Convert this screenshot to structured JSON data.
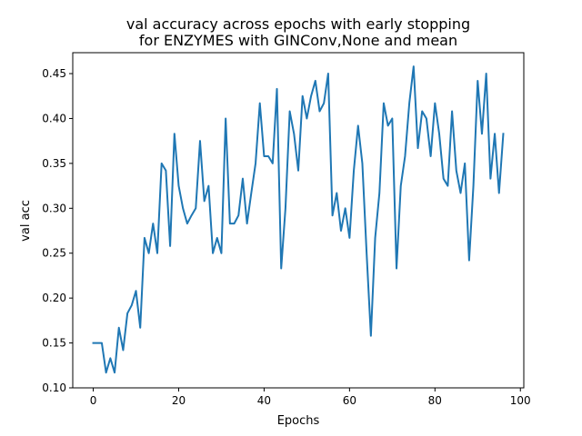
{
  "chart_data": {
    "type": "line",
    "title_lines": [
      "val accuracy across epochs with early stopping",
      "for ENZYMES with GINConv,None  and mean"
    ],
    "xlabel": "Epochs",
    "ylabel": "val acc",
    "xlim": [
      -4.8,
      100.8
    ],
    "ylim": [
      0.1,
      0.4733
    ],
    "xticks": [
      0,
      20,
      40,
      60,
      80,
      100
    ],
    "xtick_labels": [
      "0",
      "20",
      "40",
      "60",
      "80",
      "100"
    ],
    "yticks": [
      0.1,
      0.15,
      0.2,
      0.25,
      0.3,
      0.35,
      0.4,
      0.45
    ],
    "ytick_labels": [
      "0.10",
      "0.15",
      "0.20",
      "0.25",
      "0.30",
      "0.35",
      "0.40",
      "0.45"
    ],
    "grid": false,
    "line_color": "#1f77b4",
    "series": [
      {
        "x": [
          0,
          1,
          2,
          3,
          4,
          5,
          6,
          7,
          8,
          9,
          10,
          11,
          12,
          13,
          14,
          15,
          16,
          17,
          18,
          19,
          20,
          21,
          22,
          23,
          24,
          25,
          26,
          27,
          28,
          29,
          30,
          31,
          32,
          33,
          34,
          35,
          36,
          37,
          38,
          39,
          40,
          41,
          42,
          43,
          44,
          45,
          46,
          47,
          48,
          49,
          50,
          51,
          52,
          53,
          54,
          55,
          56,
          57,
          58,
          59,
          60,
          61,
          62,
          63,
          64,
          65,
          66,
          67,
          68,
          69,
          70,
          71,
          72,
          73,
          74,
          75,
          76,
          77,
          78,
          79,
          80,
          81,
          82,
          83,
          84,
          85,
          86,
          87,
          88,
          89,
          90,
          91,
          92,
          93,
          94,
          95,
          96
        ],
        "values": [
          0.15,
          0.15,
          0.15,
          0.117,
          0.133,
          0.117,
          0.167,
          0.142,
          0.183,
          0.192,
          0.208,
          0.167,
          0.267,
          0.25,
          0.283,
          0.25,
          0.35,
          0.342,
          0.258,
          0.383,
          0.325,
          0.3,
          0.283,
          0.292,
          0.3,
          0.375,
          0.308,
          0.325,
          0.25,
          0.267,
          0.25,
          0.4,
          0.283,
          0.283,
          0.292,
          0.333,
          0.283,
          0.317,
          0.35,
          0.417,
          0.358,
          0.358,
          0.35,
          0.433,
          0.233,
          0.3,
          0.408,
          0.383,
          0.342,
          0.425,
          0.4,
          0.425,
          0.442,
          0.408,
          0.417,
          0.45,
          0.292,
          0.317,
          0.275,
          0.3,
          0.267,
          0.342,
          0.392,
          0.35,
          0.25,
          0.158,
          0.267,
          0.317,
          0.417,
          0.392,
          0.4,
          0.233,
          0.325,
          0.358,
          0.417,
          0.458,
          0.367,
          0.408,
          0.4,
          0.358,
          0.417,
          0.383,
          0.333,
          0.325,
          0.408,
          0.342,
          0.317,
          0.35,
          0.242,
          0.325,
          0.442,
          0.383,
          0.45,
          0.333,
          0.383,
          0.317,
          0.383
        ]
      }
    ]
  }
}
